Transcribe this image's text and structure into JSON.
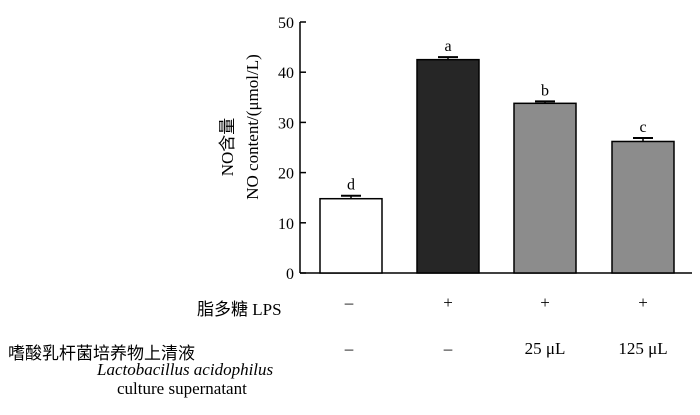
{
  "chart_data": {
    "type": "bar",
    "ylabel": [
      "NO含量",
      "NO content/(μmol/L)"
    ],
    "ylim": [
      0,
      50
    ],
    "yticks": [
      0,
      10,
      20,
      30,
      40,
      50
    ],
    "values": [
      14.8,
      42.5,
      33.8,
      26.2
    ],
    "errors": [
      0.6,
      0.5,
      0.4,
      0.7
    ],
    "significance": [
      "d",
      "a",
      "b",
      "c"
    ],
    "bar_colors": [
      "#ffffff",
      "#262626",
      "#8c8c8c",
      "#8c8c8c"
    ],
    "grid": false
  },
  "table": {
    "rows": [
      {
        "label": "脂多糖 LPS",
        "cells": [
          "–",
          "+",
          "+",
          "+"
        ]
      },
      {
        "label": "嗜酸乳杆菌培养物上清液",
        "label_en_1": "Lactobacillus acidophilus",
        "label_en_2": "culture supernatant",
        "cells": [
          "–",
          "–",
          "25 μL",
          "125 μL"
        ]
      }
    ]
  }
}
